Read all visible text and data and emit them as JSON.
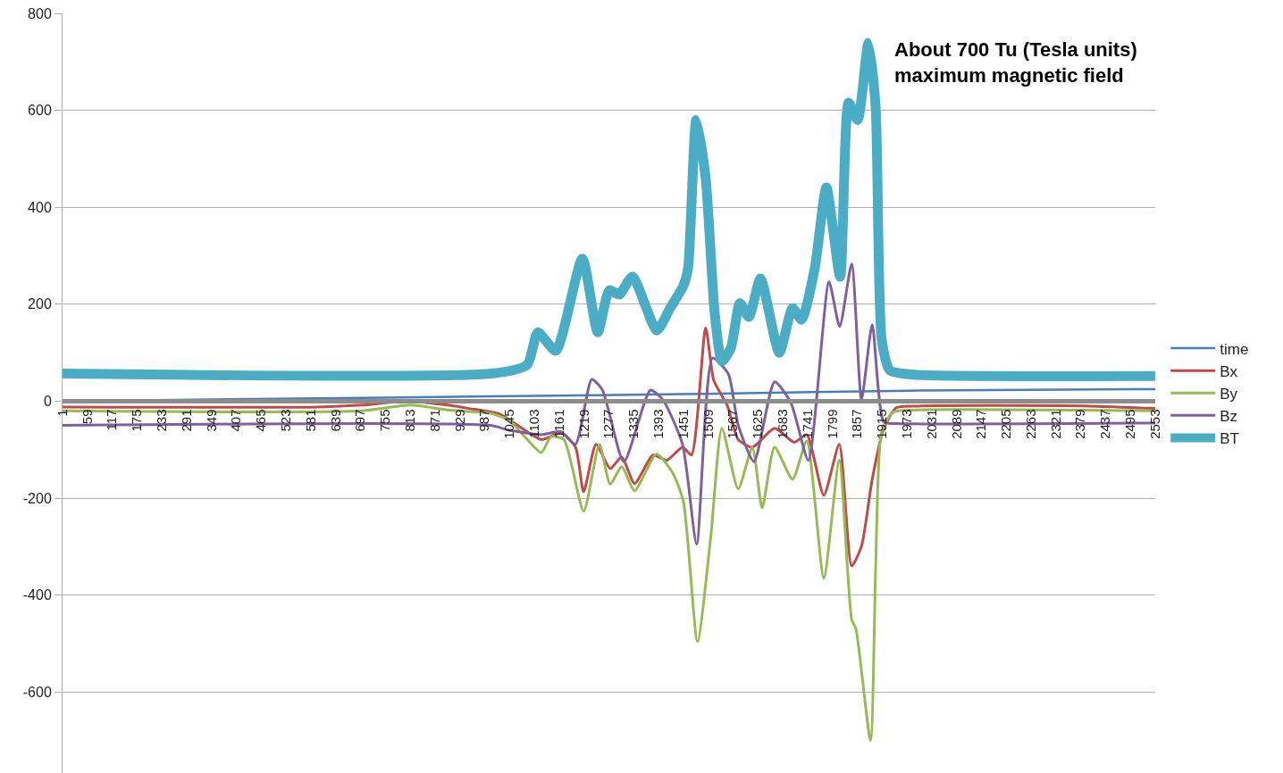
{
  "chart_data": {
    "type": "line",
    "annotations": [
      "About 700 Tu (Tesla units)\nmaximum magnetic field"
    ],
    "xlim": [
      1,
      2553
    ],
    "xticks": [
      1,
      59,
      117,
      175,
      233,
      291,
      349,
      407,
      465,
      523,
      581,
      639,
      697,
      755,
      813,
      871,
      929,
      987,
      1045,
      1103,
      1161,
      1219,
      1277,
      1335,
      1393,
      1451,
      1509,
      1567,
      1625,
      1683,
      1741,
      1799,
      1857,
      1915,
      1973,
      2031,
      2089,
      2147,
      2205,
      2263,
      2321,
      2379,
      2437,
      2495,
      2553
    ],
    "ylim": [
      -767,
      800
    ],
    "yticks": [
      -600,
      -400,
      -200,
      0,
      200,
      400,
      600,
      800
    ],
    "grid": "y",
    "legend": "right",
    "marker": "none",
    "line_style": "solid",
    "series": [
      {
        "name": "time",
        "color": "#4a7ebb",
        "x": [
          1,
          500,
          1000,
          1500,
          2000,
          2553
        ],
        "values": [
          0,
          5,
          10,
          15,
          22,
          25
        ]
      },
      {
        "name": "Bx",
        "color": "#be4b48",
        "x": [
          1,
          600,
          700,
          804,
          900,
          950,
          1023,
          1119,
          1165,
          1199,
          1218,
          1247,
          1280,
          1307,
          1337,
          1380,
          1412,
          1449,
          1470,
          1503,
          1522,
          1554,
          1579,
          1612,
          1664,
          1710,
          1739,
          1779,
          1815,
          1844,
          1867,
          1892,
          1919,
          1948,
          2000,
          2400,
          2553
        ],
        "values": [
          -12,
          -12,
          -8,
          0,
          -8,
          -15,
          -27,
          -79,
          -65,
          -95,
          -187,
          -89,
          -139,
          -115,
          -170,
          -111,
          -122,
          -95,
          -111,
          151,
          43,
          -10,
          -79,
          -95,
          -56,
          -85,
          -69,
          -194,
          -89,
          -340,
          -299,
          -161,
          -56,
          -14,
          -10,
          -10,
          -15
        ]
      },
      {
        "name": "By",
        "color": "#98b954",
        "x": [
          1,
          700,
          813,
          900,
          1000,
          1045,
          1076,
          1119,
          1142,
          1172,
          1218,
          1255,
          1280,
          1307,
          1337,
          1388,
          1426,
          1451,
          1484,
          1515,
          1541,
          1579,
          1612,
          1635,
          1664,
          1706,
          1739,
          1779,
          1815,
          1844,
          1854,
          1888,
          1900,
          1914,
          1940,
          2000,
          2553
        ],
        "values": [
          -20,
          -20,
          -8,
          -18,
          -25,
          -40,
          -69,
          -106,
          -73,
          -79,
          -227,
          -89,
          -171,
          -135,
          -185,
          -109,
          -148,
          -207,
          -496,
          -279,
          -56,
          -181,
          -95,
          -220,
          -95,
          -161,
          -82,
          -365,
          -122,
          -450,
          -470,
          -700,
          -345,
          -63,
          -23,
          -18,
          -20
        ]
      },
      {
        "name": "Bz",
        "color": "#7d60a0",
        "x": [
          1,
          1000,
          1045,
          1119,
          1165,
          1199,
          1237,
          1262,
          1312,
          1374,
          1403,
          1449,
          1482,
          1519,
          1556,
          1579,
          1616,
          1664,
          1702,
          1743,
          1791,
          1816,
          1844,
          1867,
          1892,
          1919,
          1948,
          2553
        ],
        "values": [
          -50,
          -50,
          -60,
          -69,
          -63,
          -89,
          45,
          23,
          -125,
          23,
          3,
          -89,
          -295,
          89,
          56,
          -49,
          -125,
          40,
          -3,
          -122,
          246,
          154,
          283,
          3,
          158,
          -43,
          -46,
          -45
        ]
      },
      {
        "name": "BT",
        "color": "#4bacc6",
        "x": [
          1,
          1003,
          1086,
          1111,
          1153,
          1215,
          1251,
          1278,
          1301,
          1332,
          1389,
          1420,
          1451,
          1462,
          1481,
          1503,
          1524,
          1541,
          1562,
          1583,
          1604,
          1631,
          1675,
          1706,
          1727,
          1758,
          1785,
          1817,
          1837,
          1858,
          1883,
          1900,
          1914,
          1933,
          1983,
          2553
        ],
        "values": [
          57,
          57,
          75,
          142,
          104,
          294,
          142,
          229,
          220,
          257,
          146,
          192,
          238,
          275,
          580,
          460,
          183,
          82,
          110,
          202,
          174,
          253,
          100,
          192,
          168,
          275,
          441,
          257,
          616,
          580,
          739,
          607,
          128,
          64,
          55,
          52
        ]
      }
    ]
  }
}
